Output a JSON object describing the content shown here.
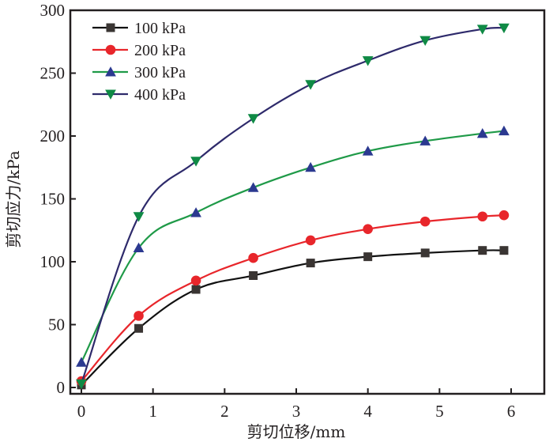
{
  "chart_data": {
    "type": "line",
    "title": "",
    "xlabel": "剪切位移/mm",
    "ylabel": "剪切应力/kPa",
    "xlim": [
      -0.15,
      6.4
    ],
    "ylim": [
      -5,
      300
    ],
    "x_ticks": [
      0,
      1,
      2,
      3,
      4,
      5,
      6
    ],
    "y_ticks": [
      0,
      50,
      100,
      150,
      200,
      250,
      300
    ],
    "grid": false,
    "legend_position": "top-left",
    "x": [
      0,
      0.8,
      1.6,
      2.4,
      3.2,
      4.0,
      4.8,
      5.6,
      5.9
    ],
    "series": [
      {
        "name": "100 kPa",
        "marker": "square",
        "line_color": "#111111",
        "marker_color": "#3a3533",
        "values": [
          2,
          47,
          78,
          89,
          99,
          104,
          107,
          109,
          109
        ]
      },
      {
        "name": "200 kPa",
        "marker": "circle",
        "line_color": "#e8262b",
        "marker_color": "#e8262b",
        "values": [
          5,
          57,
          85,
          103,
          117,
          126,
          132,
          136,
          137
        ]
      },
      {
        "name": "300 kPa",
        "marker": "triangle-up",
        "line_color": "#1f9a48",
        "marker_color": "#2b3990",
        "values": [
          20,
          111,
          139,
          159,
          175,
          188,
          196,
          202,
          204
        ]
      },
      {
        "name": "400 kPa",
        "marker": "triangle-down",
        "line_color": "#2e2a6b",
        "marker_color": "#0f8a45",
        "values": [
          3,
          136,
          180,
          214,
          241,
          260,
          276,
          285,
          286
        ]
      }
    ]
  }
}
